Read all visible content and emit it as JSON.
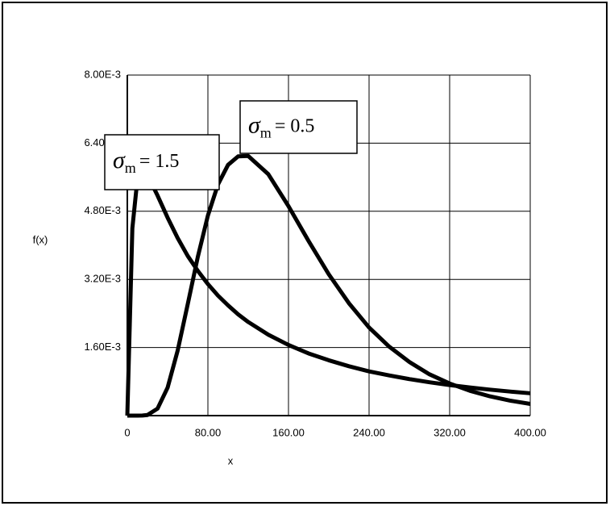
{
  "chart_data": {
    "type": "line",
    "x_label": "x",
    "y_label": "f(x)",
    "x": [
      0,
      5,
      10,
      15,
      20,
      30,
      40,
      50,
      60,
      70,
      80,
      90,
      100,
      110,
      120,
      140,
      160,
      180,
      200,
      220,
      240,
      260,
      280,
      300,
      320,
      340,
      360,
      380,
      400
    ],
    "series": [
      {
        "color": "#000000",
        "values": [
          0,
          0,
          0,
          1.5e-06,
          1.35e-05,
          0.000165,
          0.000658,
          0.00153,
          0.00262,
          0.00373,
          0.0047,
          0.00543,
          0.00589,
          0.00609,
          0.0061,
          0.00567,
          0.00492,
          0.0041,
          0.00332,
          0.00264,
          0.00207,
          0.00162,
          0.00126,
          0.00097,
          0.000755,
          0.000584,
          0.000453,
          0.000352,
          0.000275
        ]
      },
      {
        "color": "#000000",
        "values": [
          0,
          0.0044,
          0.00555,
          0.00576,
          0.00565,
          0.00517,
          0.00465,
          0.00417,
          0.00375,
          0.0034,
          0.00309,
          0.00282,
          0.00259,
          0.00238,
          0.0022,
          0.0019,
          0.00166,
          0.00146,
          0.0013,
          0.00116,
          0.00104,
          0.000944,
          0.000858,
          0.000783,
          0.000718,
          0.000661,
          0.00061,
          0.000565,
          0.000525
        ]
      }
    ],
    "xlim": [
      0,
      400
    ],
    "xticks": [
      0,
      {
        "value": 80,
        "label": "80.00"
      },
      {
        "value": 160,
        "label": "160.00"
      },
      {
        "value": 240,
        "label": "240.00"
      },
      {
        "value": 320,
        "label": "320.00"
      },
      {
        "value": 400,
        "label": "400.00"
      }
    ],
    "ylim": [
      0,
      0.008
    ],
    "yticks": [
      {
        "value": 0.0016,
        "label": "1.60E-3"
      },
      {
        "value": 0.0032,
        "label": "3.20E-3"
      },
      {
        "value": 0.0048,
        "label": "4.80E-3"
      },
      {
        "value": 0.0064,
        "label": "6.40E-3"
      },
      {
        "value": 0.008,
        "label": "8.00E-3"
      }
    ],
    "grid": true,
    "annotations": [
      {
        "symbol": "σ",
        "subscript": "m",
        "text": "= 1.5"
      },
      {
        "symbol": "σ",
        "subscript": "m",
        "text": "= 0.5"
      }
    ]
  }
}
